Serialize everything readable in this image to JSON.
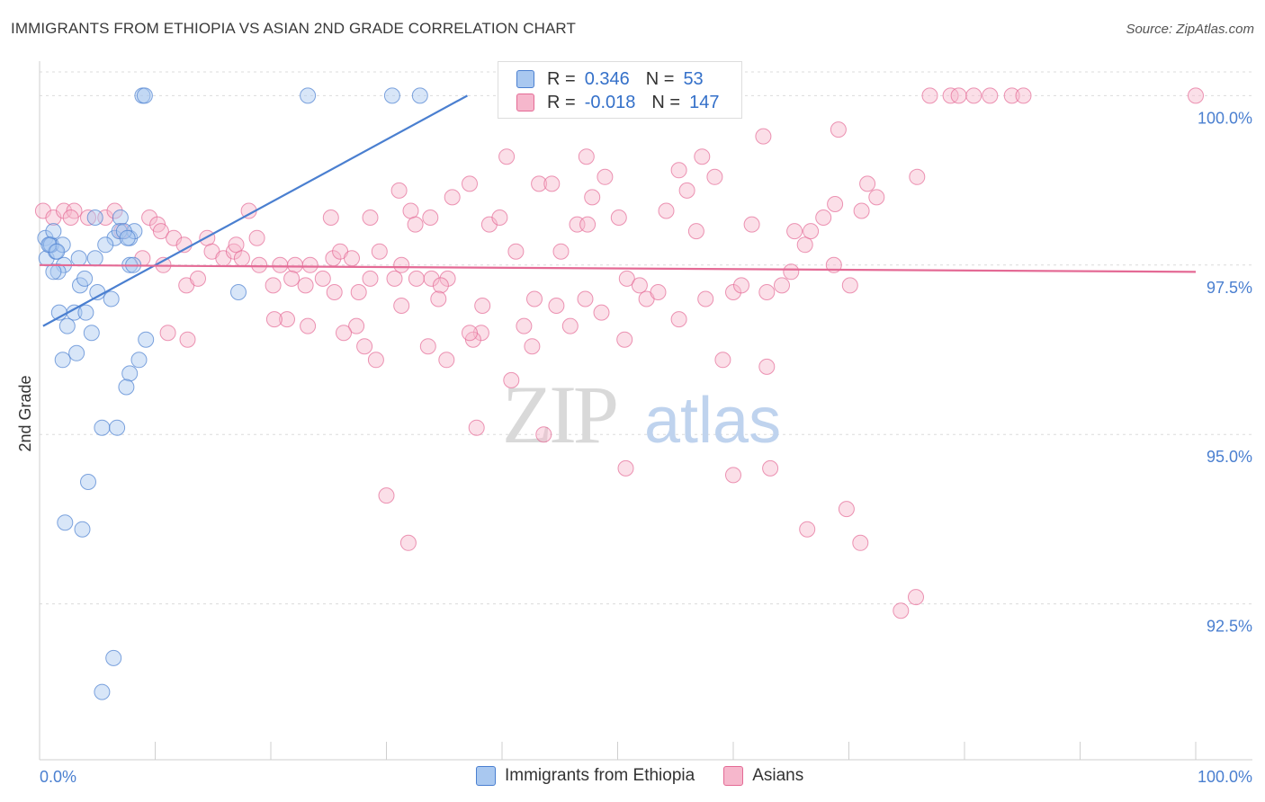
{
  "title": "IMMIGRANTS FROM ETHIOPIA VS ASIAN 2ND GRADE CORRELATION CHART",
  "source": "Source: ZipAtlas.com",
  "watermark": {
    "zip": "ZIP",
    "atlas": "atlas"
  },
  "legend": {
    "rows": [
      {
        "r_label": "R =",
        "r_value": "0.346",
        "n_label": "N =",
        "n_value": "53",
        "color": "#4a7fd0"
      },
      {
        "r_label": "R =",
        "r_value": "-0.018",
        "n_label": "N =",
        "n_value": "147",
        "color": "#e46a95"
      }
    ]
  },
  "bottom_legend": [
    "Immigrants from Ethiopia",
    "Asians"
  ],
  "chart_data": {
    "type": "scatter",
    "xlabel": "",
    "ylabel": "2nd Grade",
    "xlim": [
      0,
      100
    ],
    "ylim": [
      90.2,
      100.35
    ],
    "x_tick_labels": [
      "0.0%",
      "100.0%"
    ],
    "y_ticks": [
      92.5,
      95.0,
      97.5,
      100.0
    ],
    "y_tick_labels": [
      "92.5%",
      "95.0%",
      "97.5%",
      "100.0%"
    ],
    "series": [
      {
        "name": "Immigrants from Ethiopia",
        "color": "#4a7fd0",
        "fill": "#a9c8f0",
        "trend": {
          "x": [
            0.3,
            37.0
          ],
          "y": [
            96.6,
            100.0
          ]
        },
        "points": [
          [
            8.9,
            100.0
          ],
          [
            9.1,
            100.0
          ],
          [
            23.2,
            100.0
          ],
          [
            30.5,
            100.0
          ],
          [
            32.9,
            100.0
          ],
          [
            0.5,
            97.9
          ],
          [
            0.9,
            97.8
          ],
          [
            0.6,
            97.6
          ],
          [
            1.4,
            97.7
          ],
          [
            1.0,
            97.8
          ],
          [
            1.2,
            98.0
          ],
          [
            2.0,
            97.8
          ],
          [
            2.1,
            97.5
          ],
          [
            3.4,
            97.6
          ],
          [
            4.8,
            97.6
          ],
          [
            6.5,
            97.9
          ],
          [
            5.7,
            97.8
          ],
          [
            7.8,
            97.9
          ],
          [
            8.2,
            98.0
          ],
          [
            7.0,
            98.2
          ],
          [
            6.9,
            98.0
          ],
          [
            7.3,
            98.0
          ],
          [
            7.6,
            97.9
          ],
          [
            1.6,
            97.4
          ],
          [
            1.2,
            97.4
          ],
          [
            7.8,
            97.5
          ],
          [
            8.1,
            97.5
          ],
          [
            17.2,
            97.1
          ],
          [
            3.5,
            97.2
          ],
          [
            3.9,
            97.3
          ],
          [
            5.0,
            97.1
          ],
          [
            6.2,
            97.0
          ],
          [
            3.0,
            96.8
          ],
          [
            4.0,
            96.8
          ],
          [
            1.7,
            96.8
          ],
          [
            2.4,
            96.6
          ],
          [
            4.5,
            96.5
          ],
          [
            9.2,
            96.4
          ],
          [
            8.6,
            96.1
          ],
          [
            3.2,
            96.2
          ],
          [
            2.0,
            96.1
          ],
          [
            7.8,
            95.9
          ],
          [
            7.5,
            95.7
          ],
          [
            5.4,
            95.1
          ],
          [
            6.7,
            95.1
          ],
          [
            4.2,
            94.3
          ],
          [
            2.2,
            93.7
          ],
          [
            3.7,
            93.6
          ],
          [
            6.4,
            91.7
          ],
          [
            5.4,
            91.2
          ],
          [
            0.8,
            97.8
          ],
          [
            1.5,
            97.7
          ],
          [
            4.8,
            98.2
          ]
        ]
      },
      {
        "name": "Asians",
        "color": "#e46a95",
        "fill": "#f6b7cc",
        "trend": {
          "x": [
            0.0,
            100.0
          ],
          "y": [
            97.5,
            97.4
          ]
        },
        "points": [
          [
            0.3,
            98.3
          ],
          [
            1.2,
            98.2
          ],
          [
            2.1,
            98.3
          ],
          [
            3.0,
            98.3
          ],
          [
            2.7,
            98.2
          ],
          [
            4.2,
            98.2
          ],
          [
            5.7,
            98.2
          ],
          [
            7.1,
            98.0
          ],
          [
            6.5,
            98.3
          ],
          [
            9.5,
            98.2
          ],
          [
            10.2,
            98.1
          ],
          [
            10.5,
            98.0
          ],
          [
            11.6,
            97.9
          ],
          [
            12.5,
            97.8
          ],
          [
            14.5,
            97.9
          ],
          [
            14.9,
            97.7
          ],
          [
            15.9,
            97.6
          ],
          [
            16.8,
            97.7
          ],
          [
            17.0,
            97.8
          ],
          [
            18.8,
            97.9
          ],
          [
            19.0,
            97.5
          ],
          [
            20.8,
            97.5
          ],
          [
            8.9,
            97.6
          ],
          [
            10.7,
            97.5
          ],
          [
            12.7,
            97.2
          ],
          [
            13.7,
            97.3
          ],
          [
            17.5,
            97.6
          ],
          [
            20.2,
            97.2
          ],
          [
            22.1,
            97.5
          ],
          [
            21.8,
            97.3
          ],
          [
            23.0,
            97.2
          ],
          [
            23.4,
            97.5
          ],
          [
            24.5,
            97.3
          ],
          [
            25.4,
            97.6
          ],
          [
            25.5,
            97.1
          ],
          [
            26.0,
            97.7
          ],
          [
            27.0,
            97.6
          ],
          [
            27.6,
            97.1
          ],
          [
            29.4,
            97.7
          ],
          [
            28.6,
            97.3
          ],
          [
            30.7,
            97.3
          ],
          [
            31.3,
            97.5
          ],
          [
            32.6,
            97.3
          ],
          [
            33.9,
            97.3
          ],
          [
            35.3,
            97.3
          ],
          [
            34.7,
            97.2
          ],
          [
            18.1,
            98.3
          ],
          [
            25.2,
            98.2
          ],
          [
            28.6,
            98.2
          ],
          [
            32.1,
            98.3
          ],
          [
            32.5,
            98.1
          ],
          [
            33.8,
            98.2
          ],
          [
            35.7,
            98.5
          ],
          [
            37.2,
            98.7
          ],
          [
            38.9,
            98.1
          ],
          [
            39.8,
            98.2
          ],
          [
            40.4,
            99.1
          ],
          [
            41.2,
            97.7
          ],
          [
            43.2,
            98.7
          ],
          [
            44.3,
            98.7
          ],
          [
            45.1,
            97.7
          ],
          [
            46.5,
            98.1
          ],
          [
            47.4,
            98.1
          ],
          [
            47.3,
            99.1
          ],
          [
            47.8,
            98.5
          ],
          [
            48.9,
            98.8
          ],
          [
            50.1,
            98.2
          ],
          [
            50.8,
            97.3
          ],
          [
            51.9,
            97.2
          ],
          [
            52.5,
            97.0
          ],
          [
            53.5,
            97.1
          ],
          [
            54.2,
            98.3
          ],
          [
            55.3,
            98.9
          ],
          [
            56.0,
            98.6
          ],
          [
            56.8,
            98.0
          ],
          [
            57.3,
            99.1
          ],
          [
            57.6,
            97.0
          ],
          [
            58.4,
            98.8
          ],
          [
            60.0,
            97.1
          ],
          [
            60.7,
            97.2
          ],
          [
            61.6,
            98.1
          ],
          [
            62.9,
            97.1
          ],
          [
            62.6,
            99.4
          ],
          [
            64.2,
            97.2
          ],
          [
            65.3,
            98.0
          ],
          [
            66.2,
            97.8
          ],
          [
            66.7,
            98.0
          ],
          [
            67.8,
            98.2
          ],
          [
            68.8,
            98.4
          ],
          [
            69.1,
            99.5
          ],
          [
            68.7,
            97.5
          ],
          [
            70.1,
            97.2
          ],
          [
            71.6,
            98.7
          ],
          [
            71.1,
            98.3
          ],
          [
            72.4,
            98.5
          ],
          [
            75.9,
            98.8
          ],
          [
            65.0,
            97.4
          ],
          [
            59.1,
            96.1
          ],
          [
            55.3,
            96.7
          ],
          [
            50.6,
            96.4
          ],
          [
            48.6,
            96.8
          ],
          [
            45.9,
            96.6
          ],
          [
            44.7,
            96.9
          ],
          [
            42.6,
            96.3
          ],
          [
            38.2,
            96.5
          ],
          [
            37.5,
            96.4
          ],
          [
            37.2,
            96.5
          ],
          [
            35.2,
            96.1
          ],
          [
            28.1,
            96.3
          ],
          [
            27.4,
            96.6
          ],
          [
            26.3,
            96.5
          ],
          [
            23.2,
            96.6
          ],
          [
            21.4,
            96.7
          ],
          [
            20.3,
            96.7
          ],
          [
            12.8,
            96.4
          ],
          [
            11.1,
            96.5
          ],
          [
            34.5,
            97.0
          ],
          [
            38.3,
            96.9
          ],
          [
            31.3,
            96.9
          ],
          [
            62.9,
            96.0
          ],
          [
            33.6,
            96.3
          ],
          [
            42.8,
            97.0
          ],
          [
            41.9,
            96.6
          ],
          [
            47.2,
            97.0
          ],
          [
            29.1,
            96.1
          ],
          [
            40.8,
            95.8
          ],
          [
            37.8,
            95.1
          ],
          [
            43.6,
            95.0
          ],
          [
            30.0,
            94.1
          ],
          [
            31.9,
            93.4
          ],
          [
            50.7,
            94.5
          ],
          [
            60.0,
            94.4
          ],
          [
            63.2,
            94.5
          ],
          [
            66.4,
            93.6
          ],
          [
            69.8,
            93.9
          ],
          [
            71.0,
            93.4
          ],
          [
            74.5,
            92.4
          ],
          [
            75.8,
            92.6
          ],
          [
            77.0,
            100.0
          ],
          [
            78.8,
            100.0
          ],
          [
            79.5,
            100.0
          ],
          [
            80.8,
            100.0
          ],
          [
            82.2,
            100.0
          ],
          [
            84.1,
            100.0
          ],
          [
            85.1,
            100.0
          ],
          [
            100.0,
            100.0
          ],
          [
            31.1,
            98.6
          ]
        ]
      }
    ]
  }
}
